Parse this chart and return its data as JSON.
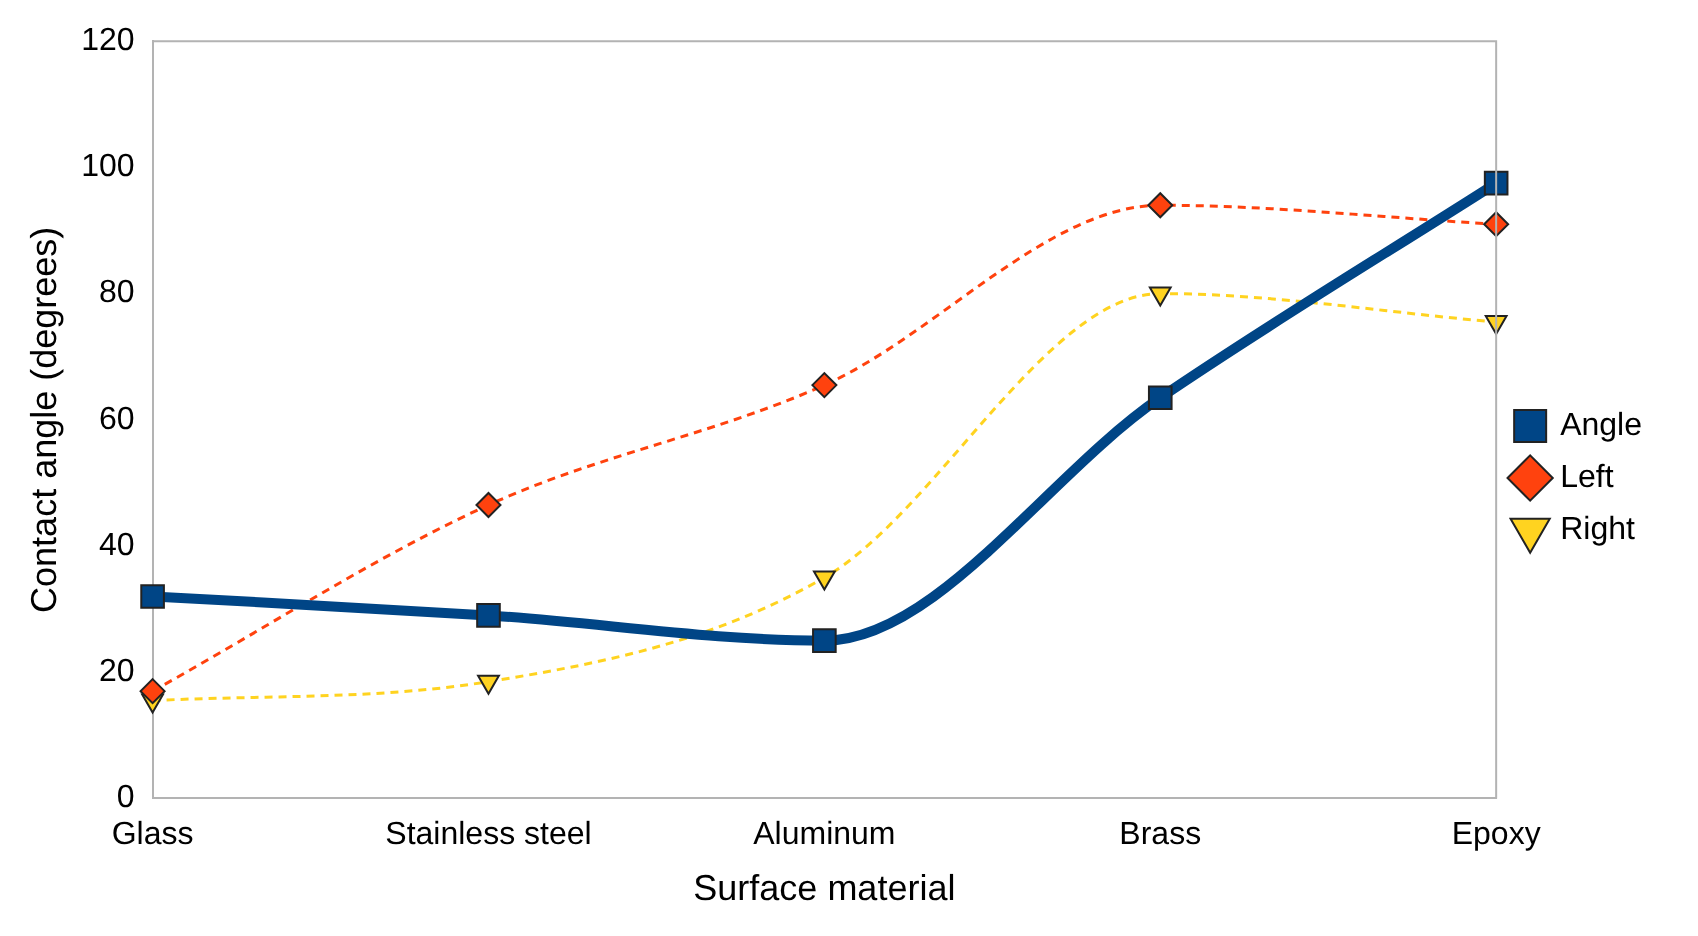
{
  "chart_data": {
    "type": "line",
    "xlabel": "Surface material",
    "ylabel": "Contact angle (degrees)",
    "categories": [
      "Glass",
      "Stainless steel",
      "Aluminum",
      "Brass",
      "Epoxy"
    ],
    "series": [
      {
        "name": "Angle",
        "color": "#004586",
        "values": [
          32,
          29,
          25,
          63.5,
          97.5
        ],
        "marker": "square",
        "line_style": "solid"
      },
      {
        "name": "Left",
        "color": "#ff420e",
        "values": [
          17,
          46.5,
          65.5,
          94,
          91
        ],
        "marker": "diamond",
        "line_style": "dashed"
      },
      {
        "name": "Right",
        "color": "#ffd320",
        "values": [
          15.5,
          18.5,
          35,
          80,
          75.5
        ],
        "marker": "triangle",
        "line_style": "dashed"
      }
    ],
    "ylim": [
      0,
      120
    ],
    "yticks": [
      0,
      20,
      40,
      60,
      80,
      100,
      120
    ],
    "grid": false,
    "legend": "right"
  }
}
